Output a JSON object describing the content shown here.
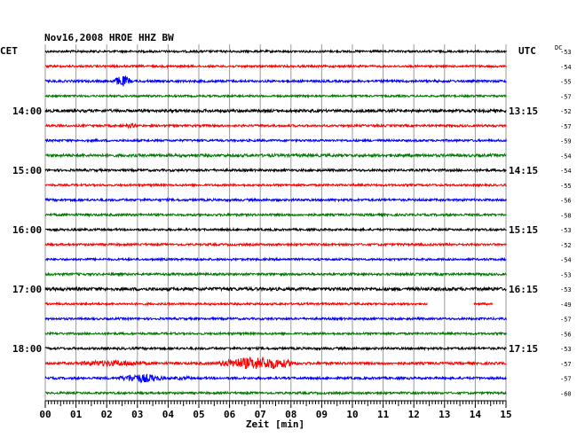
{
  "chart_data": {
    "type": "line",
    "title": "Nov16,2008   HROE HHZ BW",
    "left_zone": "CET",
    "right_zone": "UTC",
    "dc_header": "DC",
    "xlabel": "Zeit [min]",
    "x_ticks": [
      "00",
      "01",
      "02",
      "03",
      "04",
      "05",
      "06",
      "07",
      "08",
      "09",
      "10",
      "11",
      "12",
      "13",
      "14",
      "15"
    ],
    "xlim": [
      0,
      15
    ],
    "grid": true,
    "row_minutes": 15,
    "left_hour_labels": [
      {
        "row": 4,
        "text": "14:00"
      },
      {
        "row": 8,
        "text": "15:00"
      },
      {
        "row": 12,
        "text": "16:00"
      },
      {
        "row": 16,
        "text": "17:00"
      },
      {
        "row": 20,
        "text": "18:00"
      }
    ],
    "right_hour_labels": [
      {
        "row": 4,
        "text": "13:15"
      },
      {
        "row": 8,
        "text": "14:15"
      },
      {
        "row": 12,
        "text": "15:15"
      },
      {
        "row": 16,
        "text": "16:15"
      },
      {
        "row": 20,
        "text": "17:15"
      }
    ],
    "trace_colors": [
      "#000000",
      "#ff0000",
      "#0000ff",
      "#007700"
    ],
    "traces": [
      {
        "dc": "-53",
        "noise": 1.2
      },
      {
        "dc": "-54",
        "noise": 1.2
      },
      {
        "dc": "-55",
        "noise": 1.3,
        "events": [
          {
            "t": 2.5,
            "w": 0.35,
            "amp": 6
          }
        ]
      },
      {
        "dc": "-57",
        "noise": 1.1
      },
      {
        "dc": "-52",
        "noise": 1.6
      },
      {
        "dc": "-57",
        "noise": 1.2,
        "events": [
          {
            "t": 2.8,
            "w": 0.3,
            "amp": 2.5
          }
        ]
      },
      {
        "dc": "-59",
        "noise": 1.2
      },
      {
        "dc": "-54",
        "noise": 1.6
      },
      {
        "dc": "-54",
        "noise": 1.3
      },
      {
        "dc": "-55",
        "noise": 1.2
      },
      {
        "dc": "-56",
        "noise": 1.3
      },
      {
        "dc": "-58",
        "noise": 1.3
      },
      {
        "dc": "-53",
        "noise": 1.2
      },
      {
        "dc": "-52",
        "noise": 1.2
      },
      {
        "dc": "-54",
        "noise": 1.2
      },
      {
        "dc": "-53",
        "noise": 1.3
      },
      {
        "dc": "-53",
        "noise": 1.8
      },
      {
        "dc": "-49",
        "noise": 1.2,
        "gaps": [
          [
            12.45,
            13.95
          ],
          [
            14.55,
            15
          ]
        ]
      },
      {
        "dc": "-57",
        "noise": 1.2
      },
      {
        "dc": "-56",
        "noise": 1.2
      },
      {
        "dc": "-53",
        "noise": 1.3
      },
      {
        "dc": "-57",
        "noise": 1.4,
        "events": [
          {
            "t": 2.2,
            "w": 1.6,
            "amp": 3.5
          },
          {
            "t": 6.9,
            "w": 1.5,
            "amp": 7
          }
        ]
      },
      {
        "dc": "-57",
        "noise": 1.3,
        "events": [
          {
            "t": 3.1,
            "w": 0.9,
            "amp": 5
          },
          {
            "t": 4.5,
            "w": 0.6,
            "amp": 2
          }
        ]
      },
      {
        "dc": "-60",
        "noise": 1.2
      }
    ]
  }
}
